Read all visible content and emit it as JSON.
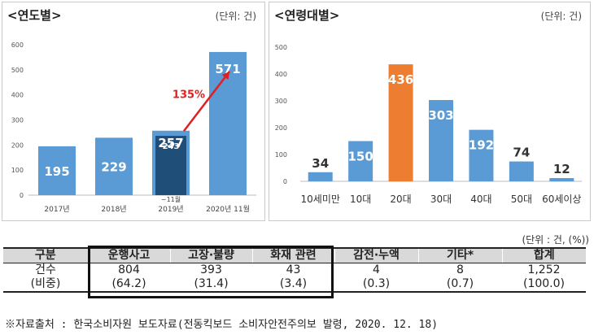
{
  "chart_data": [
    {
      "type": "bar",
      "title": "<연도별>",
      "unit_label": "(단위: 건)",
      "categories": [
        "2017년",
        "2018년",
        "2019년",
        "2020년 11월"
      ],
      "values": [
        195,
        229,
        257,
        571
      ],
      "inner_bar": {
        "category": "2019년",
        "value": 243,
        "label": "~11월"
      },
      "growth_annotation": "135%",
      "ylim": [
        0,
        600
      ],
      "yticks": [
        0,
        100,
        200,
        300,
        400,
        500,
        600
      ],
      "colors": {
        "bar": "#5b9bd5",
        "inner": "#1f4e79",
        "arrow": "#e02020",
        "label": "#ffffff"
      }
    },
    {
      "type": "bar",
      "title": "<연령대별>",
      "unit_label": "(단위: 건)",
      "categories": [
        "10세미만",
        "10대",
        "20대",
        "30대",
        "40대",
        "50대",
        "60세이상"
      ],
      "values": [
        34,
        150,
        436,
        303,
        192,
        74,
        12
      ],
      "highlight_index": 2,
      "ylim": [
        0,
        500
      ],
      "yticks": [
        0,
        100,
        200,
        300,
        400,
        500
      ],
      "colors": {
        "bar": "#5b9bd5",
        "highlight": "#ed7d31",
        "label": "#ffffff",
        "label_dark": "#333333"
      }
    },
    {
      "type": "table",
      "unit_label": "(단위 : 건, (%))",
      "columns": [
        "구분",
        "운행사고",
        "고장·불량",
        "화재 관련",
        "감전·누액",
        "기타*",
        "합계"
      ],
      "rows": [
        [
          "건수",
          "804",
          "393",
          "43",
          "4",
          "8",
          "1,252"
        ],
        [
          "(비중)",
          "(64.2)",
          "(31.4)",
          "(3.4)",
          "(0.3)",
          "(0.7)",
          "(100.0)"
        ]
      ]
    }
  ],
  "source": "※자료출처 : 한국소비자원 보도자료(전동킥보드 소비자안전주의보 발령, 2020. 12. 18)"
}
